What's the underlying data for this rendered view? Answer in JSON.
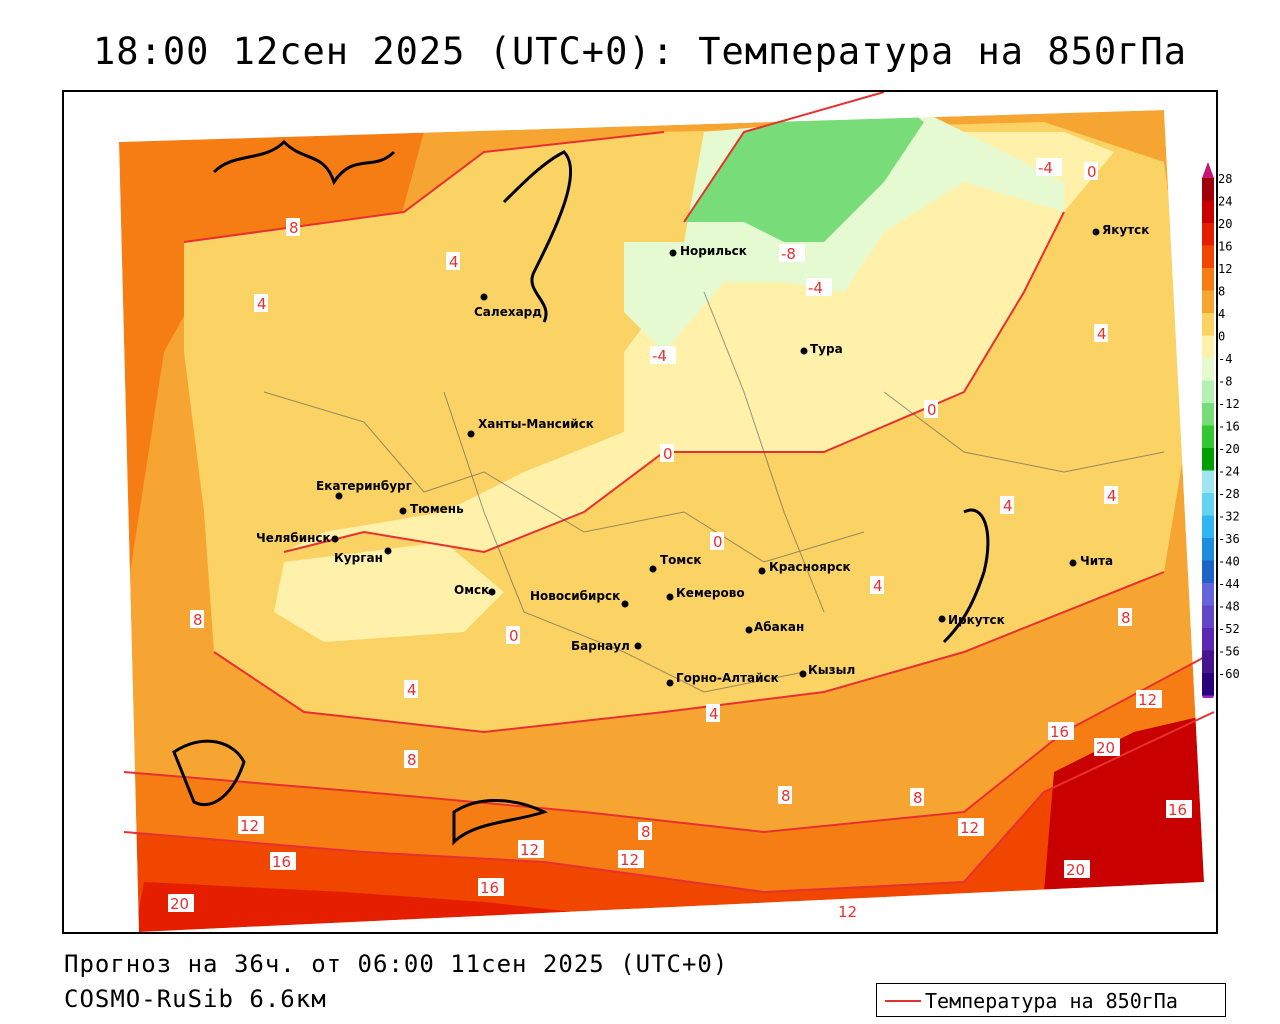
{
  "title": "18:00 12сен 2025 (UTC+0): Температура на 850гПа",
  "footer": {
    "forecast": "Прогноз на 36ч. от 06:00 11сен 2025 (UTC+0)",
    "model": "COSMO-RuSib 6.6км"
  },
  "legend": {
    "label": "Температура на 850гПа",
    "line_color": "#e03030"
  },
  "colorbar": {
    "ticks": [
      "28",
      "24",
      "20",
      "16",
      "12",
      "8",
      "4",
      "0",
      "-4",
      "-8",
      "-12",
      "-16",
      "-20",
      "-24",
      "-28",
      "-32",
      "-36",
      "-40",
      "-44",
      "-48",
      "-52",
      "-56",
      "-60"
    ],
    "colors": [
      "#a0000a",
      "#c80000",
      "#e61e00",
      "#f04600",
      "#f57d14",
      "#f7a532",
      "#fbd264",
      "#fff0aa",
      "#e6fad2",
      "#b4f0b4",
      "#78dc78",
      "#32c832",
      "#00a000",
      "#a0e6f0",
      "#64d2f0",
      "#32b4f0",
      "#1e8cdc",
      "#1e64c8",
      "#6464dc",
      "#6446c8",
      "#5a28b4",
      "#46148c",
      "#280078"
    ]
  },
  "cities": [
    {
      "name": "Норильск"
    },
    {
      "name": "Якутск"
    },
    {
      "name": "Салехард"
    },
    {
      "name": "Тура"
    },
    {
      "name": "Ханты-Мансийск"
    },
    {
      "name": "Екатеринбург"
    },
    {
      "name": "Тюмень"
    },
    {
      "name": "Челябинск"
    },
    {
      "name": "Курган"
    },
    {
      "name": "Омск"
    },
    {
      "name": "Новосибирск"
    },
    {
      "name": "Томск"
    },
    {
      "name": "Красноярск"
    },
    {
      "name": "Кемерово"
    },
    {
      "name": "Абакан"
    },
    {
      "name": "Барнаул"
    },
    {
      "name": "Горно-Алтайск"
    },
    {
      "name": "Кызыл"
    },
    {
      "name": "Иркутск"
    },
    {
      "name": "Чита"
    }
  ],
  "isotherm_labels": [
    "8",
    "4",
    "-4",
    "0",
    "12",
    "16",
    "20",
    "-8"
  ]
}
